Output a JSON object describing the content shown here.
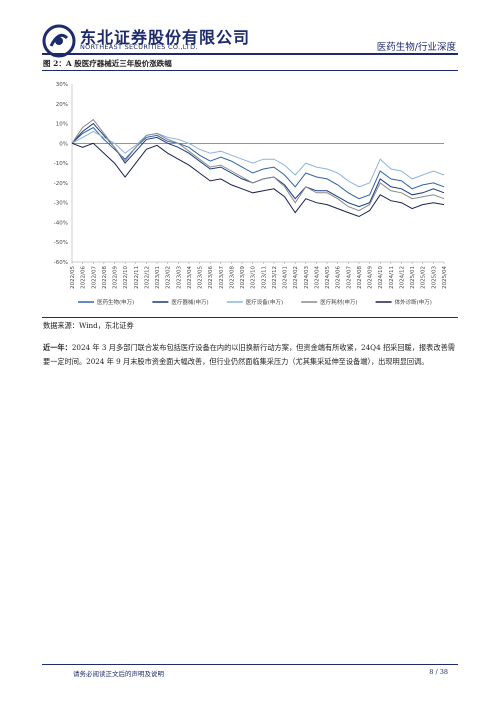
{
  "header": {
    "company_cn": "东北证券股份有限公司",
    "company_en": "NORTHEAST SECURITIES CO.,LTD.",
    "report_tag": "医药生物/行业深度"
  },
  "figure": {
    "title": "图 2：A 股医疗器械近三年股价涨跌幅"
  },
  "chart_data": {
    "type": "line",
    "title": "",
    "ylim": [
      -0.6,
      0.3
    ],
    "y_ticks": [
      "30%",
      "20%",
      "10%",
      "0%",
      "-10%",
      "-20%",
      "-30%",
      "-40%",
      "-50%",
      "-60%"
    ],
    "x_ticks": [
      "2022/05",
      "2022/06",
      "2022/07",
      "2022/08",
      "2022/09",
      "2022/10",
      "2022/11",
      "2022/12",
      "2023/01",
      "2023/02",
      "2023/03",
      "2023/04",
      "2023/05",
      "2023/06",
      "2023/07",
      "2023/08",
      "2023/09",
      "2023/10",
      "2023/11",
      "2023/12",
      "2024/01",
      "2024/02",
      "2024/03",
      "2024/04",
      "2024/05",
      "2024/06",
      "2024/07",
      "2024/08",
      "2024/09",
      "2024/10",
      "2024/11",
      "2024/12",
      "2025/01",
      "2025/02",
      "2025/03",
      "2025/04"
    ],
    "x": [
      "2022/05",
      "2022/06",
      "2022/07",
      "2022/08",
      "2022/09",
      "2022/10",
      "2022/11",
      "2022/12",
      "2023/01",
      "2023/02",
      "2023/03",
      "2023/04",
      "2023/05",
      "2023/06",
      "2023/07",
      "2023/08",
      "2023/09",
      "2023/10",
      "2023/11",
      "2023/12",
      "2024/01",
      "2024/02",
      "2024/03",
      "2024/04",
      "2024/05",
      "2024/06",
      "2024/07",
      "2024/08",
      "2024/09",
      "2024/10",
      "2024/11",
      "2024/12",
      "2025/01",
      "2025/02",
      "2025/03",
      "2025/04"
    ],
    "series": [
      {
        "name": "医药生物(申万)",
        "color": "#2f64a8",
        "values": [
          0.0,
          0.05,
          0.08,
          0.02,
          -0.03,
          -0.08,
          -0.02,
          0.03,
          0.04,
          0.01,
          0.0,
          -0.02,
          -0.06,
          -0.09,
          -0.07,
          -0.09,
          -0.12,
          -0.15,
          -0.13,
          -0.12,
          -0.16,
          -0.22,
          -0.15,
          -0.17,
          -0.18,
          -0.21,
          -0.25,
          -0.28,
          -0.26,
          -0.14,
          -0.18,
          -0.19,
          -0.23,
          -0.21,
          -0.2,
          -0.22
        ]
      },
      {
        "name": "医疗器械(申万)",
        "color": "#173a86",
        "values": [
          0.0,
          0.06,
          0.1,
          0.04,
          -0.02,
          -0.1,
          -0.04,
          0.02,
          0.03,
          0.0,
          -0.02,
          -0.05,
          -0.09,
          -0.13,
          -0.12,
          -0.15,
          -0.18,
          -0.2,
          -0.18,
          -0.17,
          -0.21,
          -0.28,
          -0.22,
          -0.24,
          -0.24,
          -0.27,
          -0.3,
          -0.32,
          -0.3,
          -0.18,
          -0.22,
          -0.23,
          -0.26,
          -0.25,
          -0.23,
          -0.25
        ]
      },
      {
        "name": "医疗设备(申万)",
        "color": "#8eb4de",
        "values": [
          0.0,
          0.03,
          0.06,
          0.03,
          0.0,
          -0.05,
          -0.01,
          0.04,
          0.05,
          0.03,
          0.02,
          0.0,
          -0.03,
          -0.05,
          -0.04,
          -0.06,
          -0.08,
          -0.1,
          -0.08,
          -0.08,
          -0.11,
          -0.16,
          -0.1,
          -0.12,
          -0.13,
          -0.15,
          -0.19,
          -0.22,
          -0.2,
          -0.08,
          -0.13,
          -0.14,
          -0.18,
          -0.16,
          -0.14,
          -0.16
        ]
      },
      {
        "name": "医疗耗材(申万)",
        "color": "#8a8a8a",
        "values": [
          0.0,
          0.08,
          0.12,
          0.05,
          -0.02,
          -0.09,
          -0.02,
          0.04,
          0.05,
          0.02,
          0.0,
          -0.04,
          -0.08,
          -0.12,
          -0.11,
          -0.14,
          -0.17,
          -0.2,
          -0.18,
          -0.17,
          -0.22,
          -0.3,
          -0.22,
          -0.25,
          -0.25,
          -0.28,
          -0.32,
          -0.34,
          -0.31,
          -0.2,
          -0.24,
          -0.25,
          -0.28,
          -0.27,
          -0.26,
          -0.28
        ]
      },
      {
        "name": "体外诊断(申万)",
        "color": "#1a2250",
        "values": [
          0.0,
          -0.02,
          0.0,
          -0.05,
          -0.1,
          -0.17,
          -0.1,
          -0.03,
          -0.01,
          -0.05,
          -0.08,
          -0.11,
          -0.15,
          -0.19,
          -0.18,
          -0.21,
          -0.23,
          -0.25,
          -0.24,
          -0.23,
          -0.27,
          -0.35,
          -0.28,
          -0.3,
          -0.31,
          -0.33,
          -0.35,
          -0.37,
          -0.34,
          -0.26,
          -0.29,
          -0.3,
          -0.33,
          -0.31,
          -0.3,
          -0.31
        ]
      }
    ],
    "grid": false,
    "legend_position": "bottom"
  },
  "source": "数据来源：Wind，东北证券",
  "paragraph": {
    "lead": "近一年：",
    "text": "2024 年 3 月多部门联合发布包括医疗设备在内的以旧换新行动方案，但资金端有所收紧，24Q4 招采回暖，报表改善需要一定时间。2024 年 9 月末股市资金面大幅改善，但行业仍然面临集采压力（尤其集采延伸至设备端），出现明显回调。"
  },
  "footer": {
    "disclaimer": "请务必阅读正文后的声明及说明",
    "page": "8 / 38"
  }
}
